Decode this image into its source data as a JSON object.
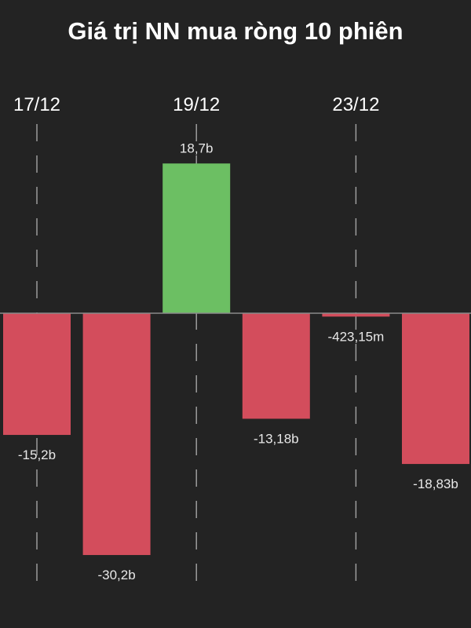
{
  "chart_data": {
    "type": "bar",
    "title": "Giá trị NN mua ròng 10 phiên",
    "xlabel": "",
    "ylabel": "",
    "x_tick_labels": [
      {
        "label": "17/12",
        "at_bar": 0
      },
      {
        "label": "19/12",
        "at_bar": 2
      },
      {
        "label": "23/12",
        "at_bar": 4
      }
    ],
    "units": "billion VND",
    "categories": [
      "",
      "",
      "",
      "",
      "",
      ""
    ],
    "values": [
      -15.2,
      -30.2,
      18.7,
      -13.18,
      -0.42315,
      -18.83
    ],
    "data_labels": [
      "-15,2b",
      "-30,2b",
      "18,7b",
      "-13,18b",
      "-423,15m",
      "-18,83b"
    ],
    "ylim": [
      -39,
      30
    ],
    "grid": "vertical dashed",
    "legend": "none"
  },
  "colors": {
    "background": "#232323",
    "positive": "#6cbf63",
    "negative": "#d34d5c",
    "axis": "#8a8a8a",
    "grid": "#bbbbbb",
    "text": "#ffffff"
  }
}
